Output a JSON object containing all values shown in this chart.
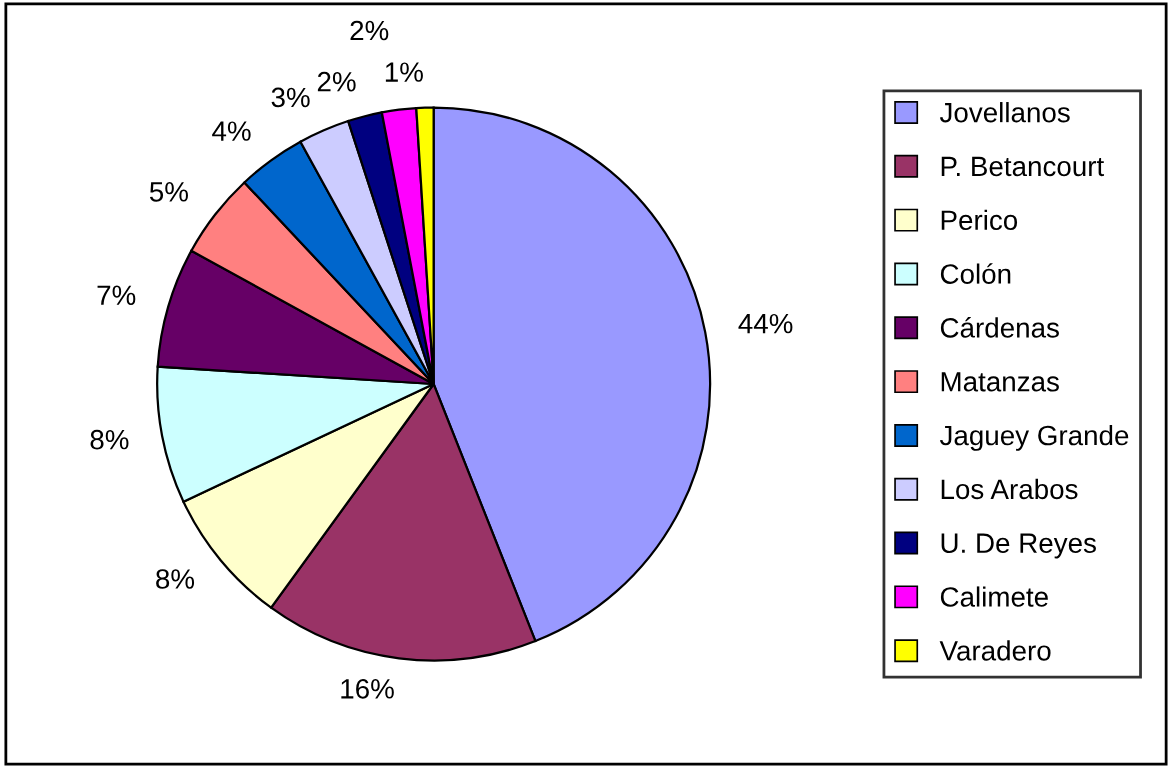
{
  "chart_data": {
    "type": "pie",
    "categories": [
      "Jovellanos",
      "P. Betancourt",
      "Perico",
      "Colón",
      "Cárdenas",
      "Matanzas",
      "Jaguey Grande",
      "Los Arabos",
      "U. De Reyes",
      "Calimete",
      "Varadero"
    ],
    "values": [
      44,
      16,
      8,
      8,
      7,
      5,
      4,
      3,
      2,
      2,
      1
    ],
    "value_labels": [
      "44%",
      "16%",
      "8%",
      "8%",
      "7%",
      "5%",
      "4%",
      "3%",
      "2%",
      "2%",
      "1%"
    ],
    "colors": [
      "#9999ff",
      "#993366",
      "#ffffcc",
      "#ccffff",
      "#660066",
      "#ff8080",
      "#0066cc",
      "#ccccff",
      "#000080",
      "#ff00ff",
      "#ffff00"
    ],
    "legend": "right"
  }
}
